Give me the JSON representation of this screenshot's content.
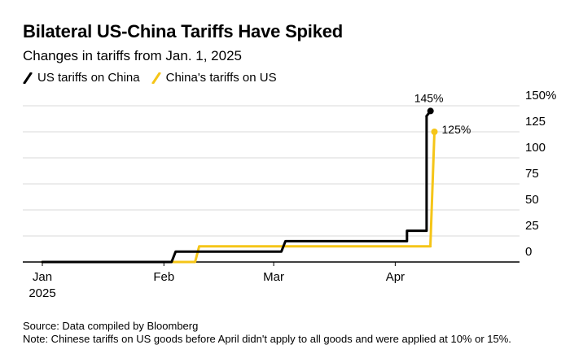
{
  "chart_data": {
    "type": "line",
    "title": "Bilateral US-China Tariffs Have Spiked",
    "subtitle": "Changes in tariffs from Jan. 1, 2025",
    "xlabel": "",
    "ylabel": "",
    "ylim": [
      0,
      150
    ],
    "yticks": [
      0,
      25,
      50,
      75,
      100,
      125,
      150
    ],
    "ytick_labels": [
      "0",
      "25",
      "50",
      "75",
      "100",
      "125",
      "150%"
    ],
    "xlim": [
      "2025-01-01",
      "2025-04-30"
    ],
    "xticks": [
      {
        "date": "2025-01-01",
        "label": "Jan",
        "sublabel": "2025"
      },
      {
        "date": "2025-02-01",
        "label": "Feb",
        "sublabel": ""
      },
      {
        "date": "2025-03-01",
        "label": "Mar",
        "sublabel": ""
      },
      {
        "date": "2025-04-01",
        "label": "Apr",
        "sublabel": ""
      }
    ],
    "series": [
      {
        "name": "US tariffs on China",
        "color": "#000000",
        "step": true,
        "points": [
          {
            "date": "2025-01-01",
            "value": 0
          },
          {
            "date": "2025-02-04",
            "value": 10
          },
          {
            "date": "2025-03-04",
            "value": 20
          },
          {
            "date": "2025-04-04",
            "value": 20
          },
          {
            "date": "2025-04-04",
            "value": 30
          },
          {
            "date": "2025-04-09",
            "value": 30
          },
          {
            "date": "2025-04-09",
            "value": 140
          },
          {
            "date": "2025-04-10",
            "value": 145
          }
        ],
        "end_label": "145%"
      },
      {
        "name": "China's tariffs on US",
        "color": "#f5c518",
        "step": true,
        "points": [
          {
            "date": "2025-01-01",
            "value": 0
          },
          {
            "date": "2025-02-10",
            "value": 15
          },
          {
            "date": "2025-04-10",
            "value": 15
          },
          {
            "date": "2025-04-11",
            "value": 125
          }
        ],
        "end_label": "125%"
      }
    ]
  },
  "footer": {
    "source": "Source: Data compiled by Bloomberg",
    "note": "Note: Chinese tariffs on US goods before April didn't apply to all goods and were applied at 10% or 15%."
  }
}
